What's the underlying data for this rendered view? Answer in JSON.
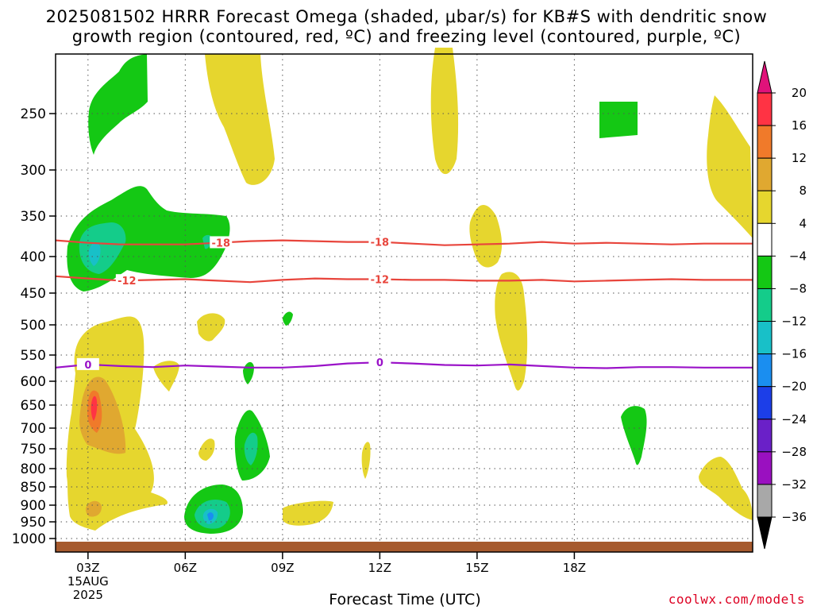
{
  "title_line1": "2025081502 HRRR Forecast Omega (shaded, μbar/s) for KB#S with dendritic snow",
  "title_line2": "growth region (contoured, red, ºC) and freezing level (contoured, purple, ºC)",
  "credit": "coolwx.com/models",
  "chart_data": {
    "type": "heatmap",
    "title": "2025081502 HRRR Forecast Omega (shaded, μbar/s) for KB#S with dendritic snow growth region (contoured, red, ºC) and freezing level (contoured, purple, ºC)",
    "xlabel": "Forecast Time (UTC)",
    "ylabel": "",
    "x_range_hours": [
      -1,
      20.5
    ],
    "y_range_hpa": [
      1030,
      200
    ],
    "y_ticks": [
      250,
      300,
      350,
      400,
      450,
      500,
      550,
      600,
      650,
      700,
      750,
      800,
      850,
      900,
      950,
      1000
    ],
    "x_ticks": [
      {
        "hour": 0,
        "label": "03Z",
        "sub": [
          "15AUG",
          "2025"
        ]
      },
      {
        "hour": 3,
        "label": "06Z",
        "sub": []
      },
      {
        "hour": 6,
        "label": "09Z",
        "sub": []
      },
      {
        "hour": 9,
        "label": "12Z",
        "sub": []
      },
      {
        "hour": 12,
        "label": "15Z",
        "sub": []
      },
      {
        "hour": 15,
        "label": "18Z",
        "sub": []
      }
    ],
    "grid": true,
    "colorbar": {
      "levels": [
        "20",
        "16",
        "12",
        "8",
        "4",
        "−4",
        "−8",
        "−12",
        "−16",
        "−20",
        "−24",
        "−28",
        "−32",
        "−36"
      ],
      "colors_top_to_bottom": [
        "#ff3344",
        "#f07a2a",
        "#e0a830",
        "#e6d62e",
        "#ffffff",
        "#14c814",
        "#14cc8a",
        "#18c0c8",
        "#1a8ef0",
        "#1c3ee8",
        "#6a20c8",
        "#9a10c0",
        "#a8a8a8"
      ],
      "top_arrow_color": "#e0127a",
      "bottom_arrow_color": "#000000"
    },
    "contours": [
      {
        "label": "-18",
        "color": "#e8453c",
        "points": [
          [
            -1,
            380
          ],
          [
            0,
            383
          ],
          [
            1,
            385
          ],
          [
            2,
            385
          ],
          [
            3,
            385
          ],
          [
            4,
            383
          ],
          [
            5,
            381
          ],
          [
            6,
            380
          ],
          [
            7,
            381
          ],
          [
            8,
            382
          ],
          [
            9,
            382
          ],
          [
            10,
            384
          ],
          [
            11,
            386
          ],
          [
            12,
            385
          ],
          [
            13,
            384
          ],
          [
            14,
            382
          ],
          [
            15,
            384
          ],
          [
            16,
            383
          ],
          [
            17,
            384
          ],
          [
            18,
            385
          ],
          [
            19,
            384
          ],
          [
            20.5,
            384
          ]
        ]
      },
      {
        "label": "-12",
        "color": "#e8453c",
        "points": [
          [
            -1,
            427
          ],
          [
            0,
            430
          ],
          [
            1,
            433
          ],
          [
            2,
            432
          ],
          [
            3,
            431
          ],
          [
            4,
            433
          ],
          [
            5,
            435
          ],
          [
            6,
            432
          ],
          [
            7,
            430
          ],
          [
            8,
            431
          ],
          [
            9,
            431
          ],
          [
            10,
            432
          ],
          [
            11,
            432
          ],
          [
            12,
            433
          ],
          [
            13,
            433
          ],
          [
            14,
            432
          ],
          [
            15,
            434
          ],
          [
            16,
            433
          ],
          [
            17,
            432
          ],
          [
            18,
            431
          ],
          [
            19,
            432
          ],
          [
            20.5,
            432
          ]
        ]
      },
      {
        "label": "0",
        "color": "#9a12c8",
        "points": [
          [
            -1,
            574
          ],
          [
            0,
            568
          ],
          [
            1,
            571
          ],
          [
            2,
            573
          ],
          [
            3,
            570
          ],
          [
            4,
            572
          ],
          [
            5,
            574
          ],
          [
            6,
            574
          ],
          [
            7,
            571
          ],
          [
            8,
            566
          ],
          [
            9,
            564
          ],
          [
            10,
            566
          ],
          [
            11,
            569
          ],
          [
            12,
            570
          ],
          [
            13,
            568
          ],
          [
            14,
            571
          ],
          [
            15,
            574
          ],
          [
            16,
            575
          ],
          [
            17,
            573
          ],
          [
            18,
            573
          ],
          [
            19,
            574
          ],
          [
            20.5,
            574
          ]
        ]
      }
    ],
    "ground_color": "#a65a2e"
  }
}
